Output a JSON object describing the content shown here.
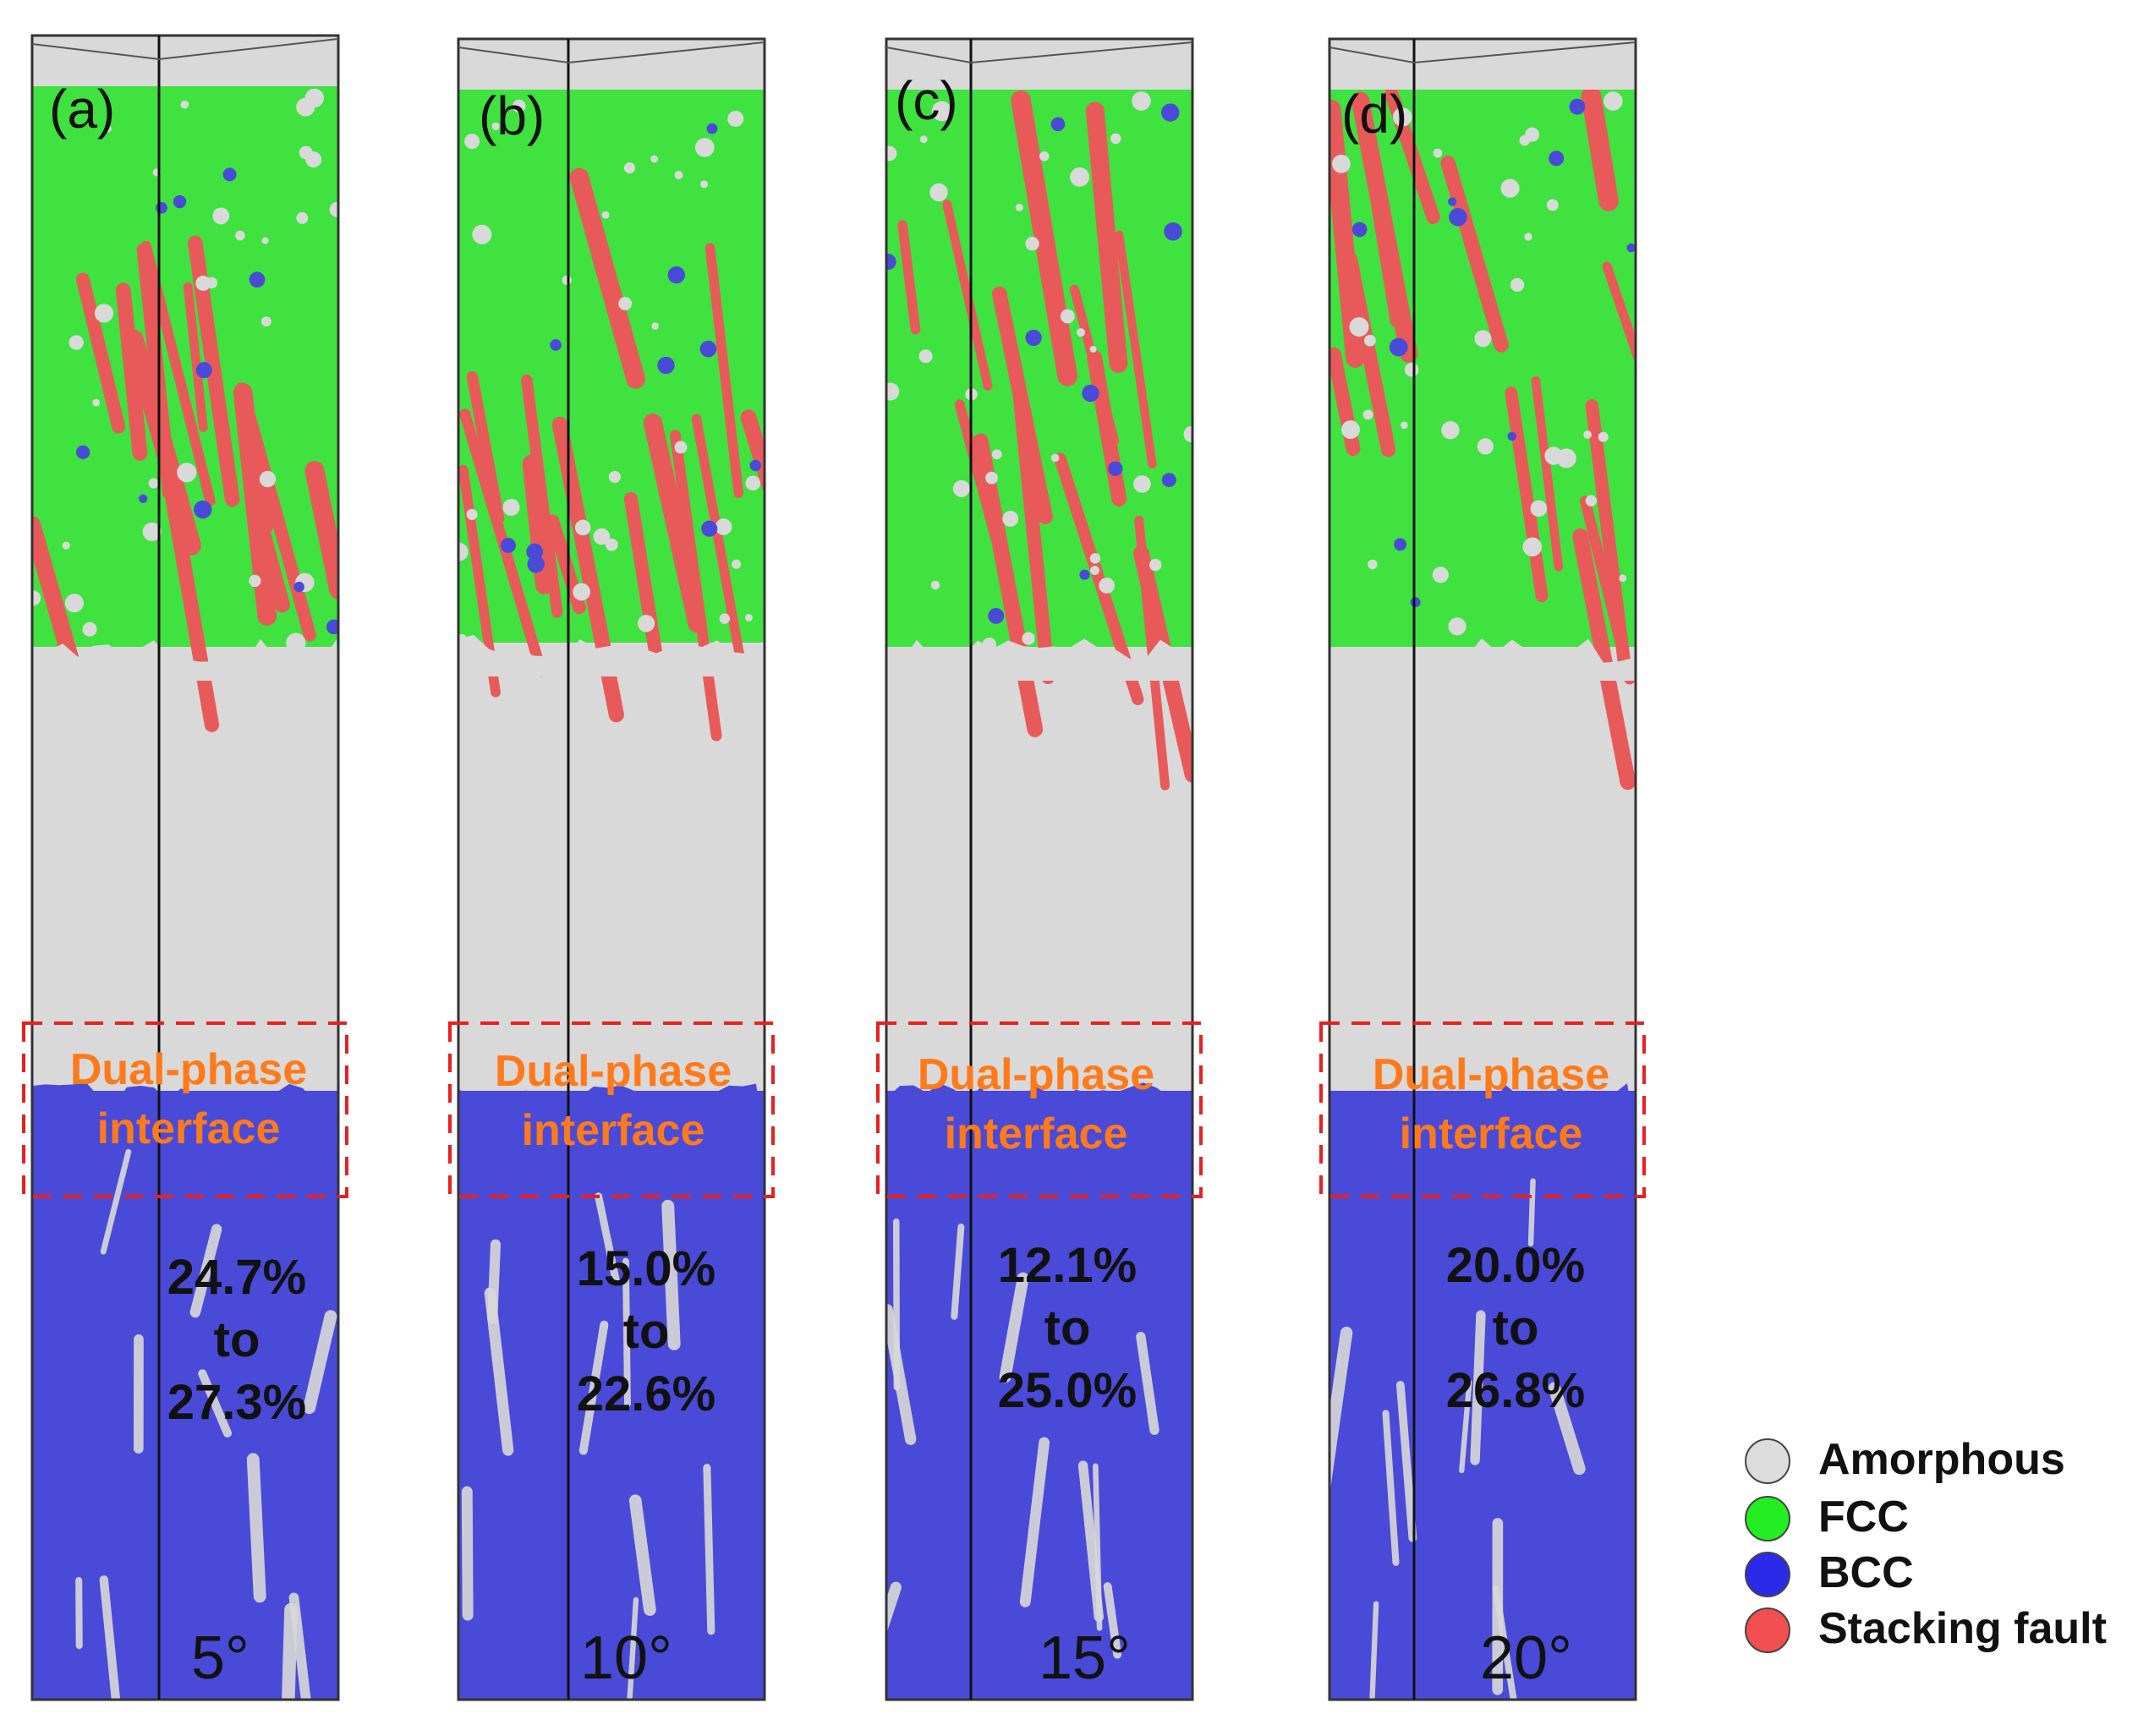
{
  "panels": [
    {
      "label": "(a)",
      "angle": "5°",
      "range_from": "24.7%",
      "range_to": "to",
      "range_end": "27.3%"
    },
    {
      "label": "(b)",
      "angle": "10°",
      "range_from": "15.0%",
      "range_to": "to",
      "range_end": "22.6%"
    },
    {
      "label": "(c)",
      "angle": "15°",
      "range_from": "12.1%",
      "range_to": "to",
      "range_end": "25.0%"
    },
    {
      "label": "(d)",
      "angle": "20°",
      "range_from": "20.0%",
      "range_to": "to",
      "range_end": "26.8%"
    }
  ],
  "interface_label": {
    "line1": "Dual-phase",
    "line2": "interface"
  },
  "legend": [
    {
      "label": "Amorphous",
      "color": "#dcdcdc"
    },
    {
      "label": "FCC",
      "color": "#22ee22"
    },
    {
      "label": "BCC",
      "color": "#2a2ae8"
    },
    {
      "label": "Stacking fault",
      "color": "#f25050"
    }
  ],
  "colors": {
    "amorphous": "#d9d9d9",
    "fcc": "#3fe23f",
    "bcc": "#4a4ad8",
    "stacking_fault": "#e85a5a",
    "interface_box": "#e82020"
  }
}
